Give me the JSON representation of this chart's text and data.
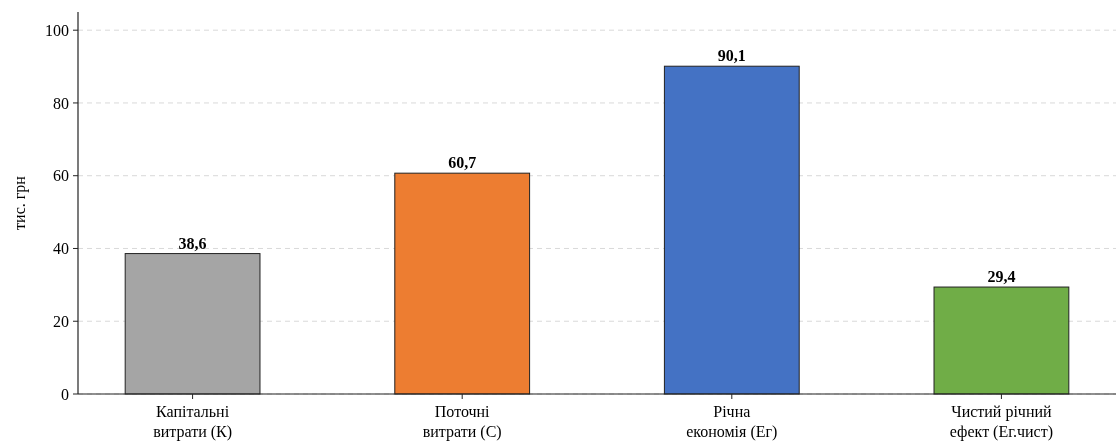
{
  "chart_data": {
    "type": "bar",
    "ylabel": "тис. грн",
    "categories": [
      "Капітальні\nвитрати (К)",
      "Поточні\nвитрати (С)",
      "Річна\nекономія (Ег)",
      "Чистий річний\nефект (Ег.чист)"
    ],
    "values": [
      38.6,
      60.7,
      90.1,
      29.4
    ],
    "colors": [
      "#a5a5a5",
      "#ed7d31",
      "#4472c4",
      "#70ad47"
    ],
    "value_labels": [
      "38,6",
      "60,7",
      "90,1",
      "29,4"
    ],
    "ylim": [
      0,
      105
    ],
    "yticks": [
      0,
      20,
      40,
      60,
      80,
      100
    ],
    "grid": "y"
  }
}
